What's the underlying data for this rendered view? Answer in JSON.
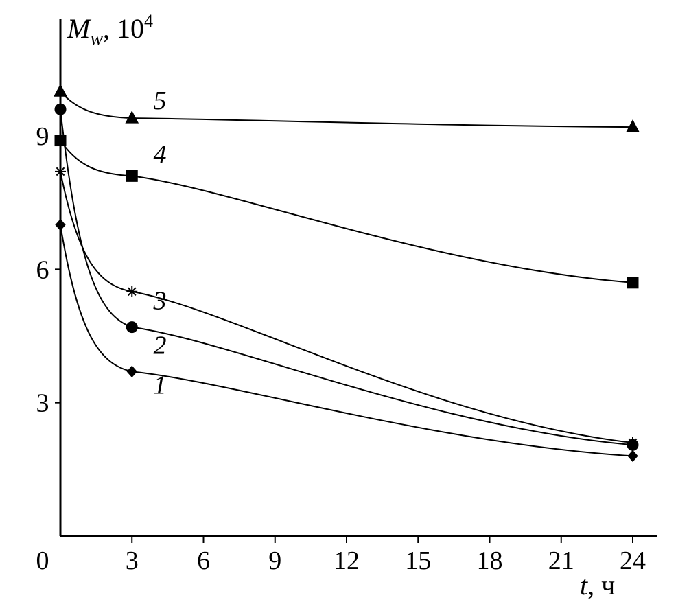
{
  "chart_data": {
    "type": "line",
    "ylabel": {
      "symbol": "M",
      "subscript": "w",
      "unit": ", 10",
      "exponent": "4"
    },
    "xlabel": {
      "symbol": "t",
      "unit": ", ч"
    },
    "xlim": [
      0,
      24
    ],
    "ylim": [
      0,
      10.9
    ],
    "xticks": [
      0,
      3,
      6,
      9,
      12,
      15,
      18,
      21,
      24
    ],
    "xtick_labels": [
      "0",
      "3",
      "6",
      "9",
      "12",
      "15",
      "18",
      "21",
      "24"
    ],
    "yticks": [
      3,
      6,
      9
    ],
    "ytick_labels": [
      "3",
      "6",
      "9"
    ],
    "grid": false,
    "series": [
      {
        "name": "1",
        "marker": "diamond",
        "x": [
          0,
          3,
          24
        ],
        "y": [
          7.0,
          3.7,
          1.8
        ]
      },
      {
        "name": "2",
        "marker": "circle",
        "x": [
          0,
          3,
          24
        ],
        "y": [
          9.6,
          4.7,
          2.05
        ]
      },
      {
        "name": "3",
        "marker": "star",
        "x": [
          0,
          3,
          24
        ],
        "y": [
          8.2,
          5.5,
          2.1
        ]
      },
      {
        "name": "4",
        "marker": "square",
        "x": [
          0,
          3,
          24
        ],
        "y": [
          8.9,
          8.1,
          5.7
        ]
      },
      {
        "name": "5",
        "marker": "triangle",
        "x": [
          0,
          3,
          24
        ],
        "y": [
          10.0,
          9.4,
          9.2
        ]
      }
    ]
  }
}
